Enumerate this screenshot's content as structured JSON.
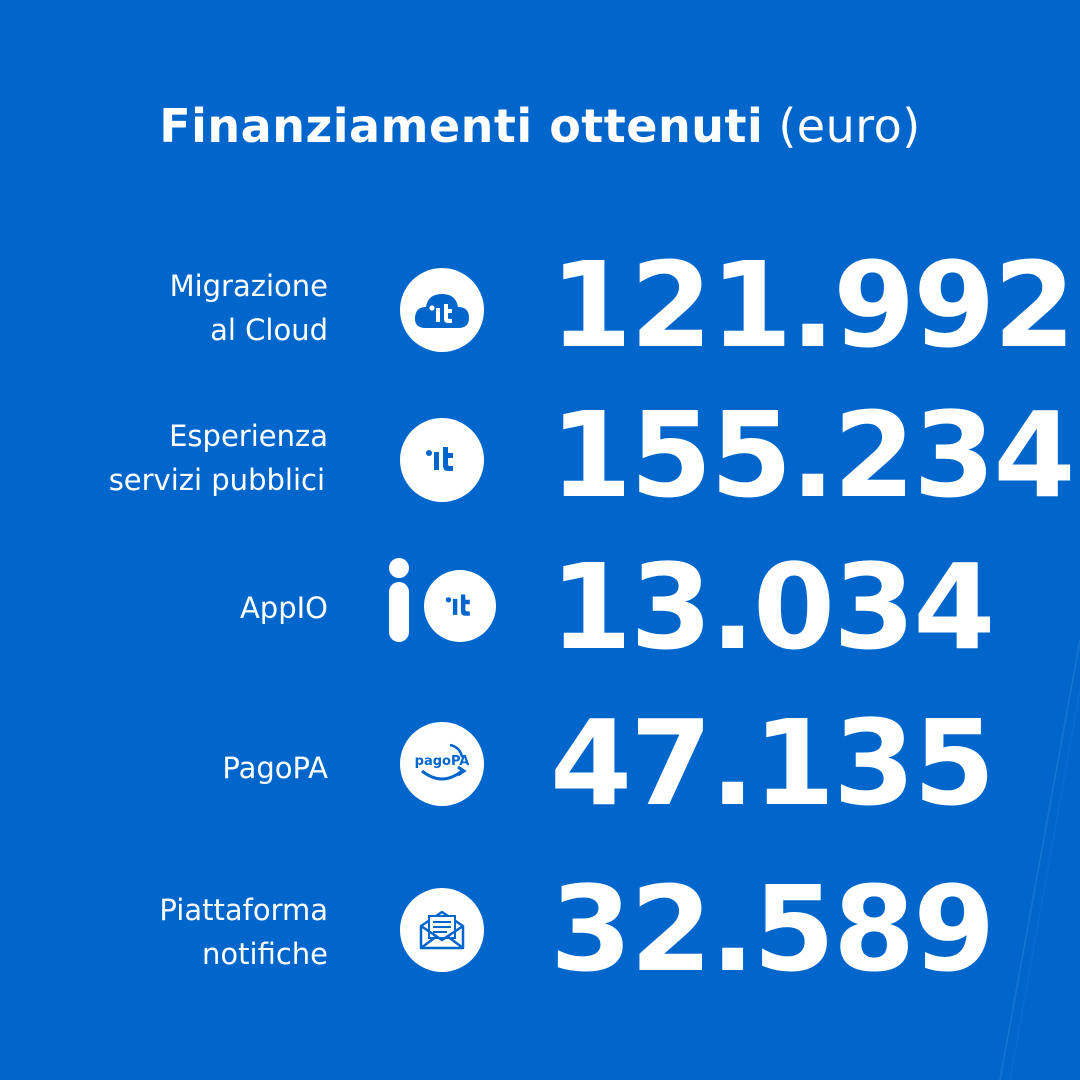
{
  "title": {
    "bold": "Finanziamenti ottenuti",
    "light": "(euro)"
  },
  "rows": [
    {
      "label_lines": [
        "Migrazione",
        "al Cloud"
      ],
      "value": "121.992",
      "icon": "cloud-it-icon",
      "icon_text": "'it"
    },
    {
      "label_lines": [
        "Esperienza",
        "servizi pubblici"
      ],
      "value": "155.234",
      "icon": "it-icon",
      "icon_text": "'it"
    },
    {
      "label_lines": [
        "AppIO"
      ],
      "value": "13.034",
      "icon": "app-io-icon",
      "icon_text": "'it"
    },
    {
      "label_lines": [
        "PagoPA"
      ],
      "value": "47.135",
      "icon": "pagopa-icon",
      "icon_text": "pagoPA"
    },
    {
      "label_lines": [
        "Piattaforma",
        "notifiche"
      ],
      "value": "32.589",
      "icon": "envelope-icon"
    }
  ],
  "colors": {
    "background": "#0066CC",
    "text": "#FFFFFF",
    "icon_fg": "#0066CC"
  }
}
